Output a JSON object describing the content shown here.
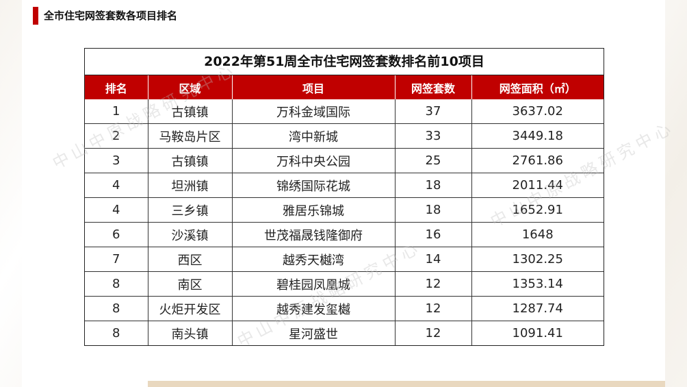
{
  "header": {
    "title": "全市住宅网签套数各项目排名"
  },
  "watermark": "中山中原战略研究中心",
  "table": {
    "caption": "2022年第51周全市住宅网签套数排名前10项目",
    "columns": [
      "排名",
      "区域",
      "项目",
      "网签套数",
      "网签面积（㎡）"
    ],
    "rows": [
      [
        "1",
        "古镇镇",
        "万科金域国际",
        "37",
        "3637.02"
      ],
      [
        "2",
        "马鞍岛片区",
        "湾中新城",
        "33",
        "3449.18"
      ],
      [
        "3",
        "古镇镇",
        "万科中央公园",
        "25",
        "2761.86"
      ],
      [
        "4",
        "坦洲镇",
        "锦绣国际花城",
        "18",
        "2011.44"
      ],
      [
        "4",
        "三乡镇",
        "雅居乐锦城",
        "18",
        "1652.91"
      ],
      [
        "6",
        "沙溪镇",
        "世茂福晟钱隆御府",
        "16",
        "1648"
      ],
      [
        "7",
        "西区",
        "越秀天樾湾",
        "14",
        "1302.25"
      ],
      [
        "8",
        "南区",
        "碧桂园凤凰城",
        "12",
        "1353.14"
      ],
      [
        "8",
        "火炬开发区",
        "越秀建发玺樾",
        "12",
        "1287.74"
      ],
      [
        "8",
        "南头镇",
        "星河盛世",
        "12",
        "1091.41"
      ]
    ]
  },
  "colors": {
    "accent": "#c00000",
    "header_text": "#ffffff",
    "strip": "#e9d8bf"
  }
}
